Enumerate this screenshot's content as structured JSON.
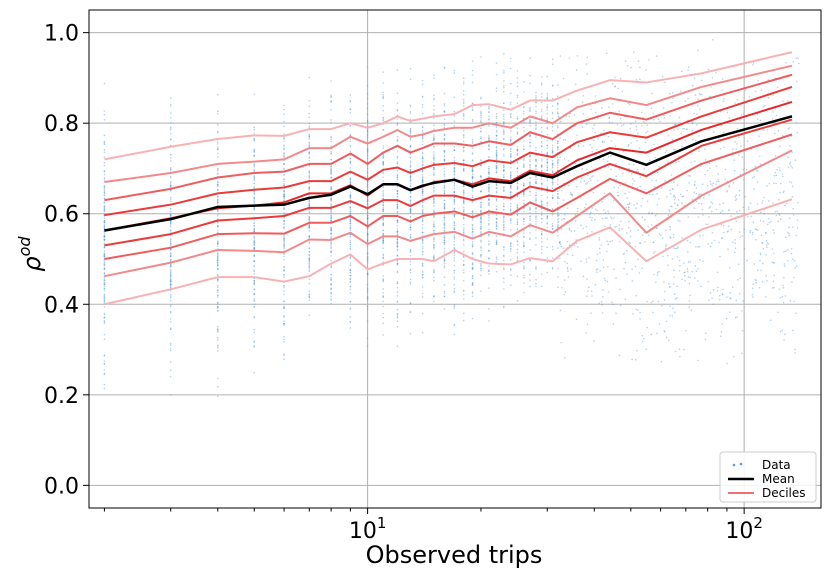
{
  "chart_data": {
    "type": "line",
    "xlabel": "Observed trips",
    "ylabel": "ρ",
    "ylabel_superscript": "od",
    "xscale": "log",
    "xlim": [
      1.82,
      160
    ],
    "ylim": [
      -0.05,
      1.05
    ],
    "grid": true,
    "legend_position": "bottom-right",
    "y_ticks": [
      {
        "value": 0.0,
        "label": "0.0"
      },
      {
        "value": 0.2,
        "label": "0.2"
      },
      {
        "value": 0.4,
        "label": "0.4"
      },
      {
        "value": 0.6,
        "label": "0.6"
      },
      {
        "value": 0.8,
        "label": "0.8"
      },
      {
        "value": 1.0,
        "label": "1.0"
      }
    ],
    "x_ticks": [
      {
        "value": 10,
        "base": "10",
        "exp": "1"
      },
      {
        "value": 100,
        "base": "10",
        "exp": "2"
      }
    ],
    "x": [
      2,
      3,
      4,
      5,
      6,
      7,
      8,
      9,
      10,
      11,
      12,
      13,
      14,
      15,
      17,
      19,
      21,
      24,
      27,
      31,
      36,
      44,
      55,
      77,
      134
    ],
    "series": [
      {
        "name": "Mean",
        "color": "#000000",
        "values": [
          0.563,
          0.588,
          0.615,
          0.618,
          0.62,
          0.635,
          0.642,
          0.66,
          0.643,
          0.665,
          0.665,
          0.652,
          0.662,
          0.668,
          0.675,
          0.66,
          0.672,
          0.668,
          0.69,
          0.68,
          0.705,
          0.735,
          0.708,
          0.76,
          0.815
        ]
      }
    ],
    "deciles": {
      "legend_name": "Deciles",
      "color": "#f07070",
      "lines": [
        {
          "color": "#f7b3b3",
          "values": [
            0.72,
            0.748,
            0.765,
            0.773,
            0.772,
            0.787,
            0.787,
            0.8,
            0.79,
            0.8,
            0.815,
            0.805,
            0.81,
            0.815,
            0.82,
            0.84,
            0.842,
            0.83,
            0.85,
            0.85,
            0.872,
            0.895,
            0.89,
            0.91,
            0.957
          ]
        },
        {
          "color": "#f28a8a",
          "values": [
            0.67,
            0.69,
            0.71,
            0.715,
            0.72,
            0.745,
            0.745,
            0.77,
            0.755,
            0.77,
            0.785,
            0.77,
            0.775,
            0.783,
            0.79,
            0.79,
            0.8,
            0.79,
            0.815,
            0.8,
            0.835,
            0.855,
            0.84,
            0.88,
            0.927
          ]
        },
        {
          "color": "#ee5d5d",
          "values": [
            0.63,
            0.655,
            0.68,
            0.69,
            0.693,
            0.71,
            0.71,
            0.733,
            0.71,
            0.735,
            0.75,
            0.735,
            0.745,
            0.755,
            0.755,
            0.75,
            0.76,
            0.752,
            0.78,
            0.765,
            0.8,
            0.823,
            0.808,
            0.85,
            0.907
          ]
        },
        {
          "color": "#ea3b3b",
          "values": [
            0.597,
            0.62,
            0.645,
            0.653,
            0.658,
            0.672,
            0.672,
            0.693,
            0.675,
            0.697,
            0.702,
            0.69,
            0.7,
            0.708,
            0.712,
            0.705,
            0.718,
            0.712,
            0.735,
            0.725,
            0.758,
            0.78,
            0.768,
            0.815,
            0.88
          ]
        },
        {
          "color": "#e62828",
          "values": [
            0.563,
            0.59,
            0.612,
            0.618,
            0.625,
            0.645,
            0.645,
            0.663,
            0.64,
            0.665,
            0.665,
            0.652,
            0.66,
            0.67,
            0.675,
            0.665,
            0.678,
            0.672,
            0.695,
            0.685,
            0.718,
            0.745,
            0.735,
            0.785,
            0.847
          ]
        },
        {
          "color": "#ea3b3b",
          "values": [
            0.53,
            0.555,
            0.585,
            0.59,
            0.595,
            0.613,
            0.613,
            0.628,
            0.612,
            0.63,
            0.63,
            0.617,
            0.63,
            0.64,
            0.64,
            0.63,
            0.64,
            0.635,
            0.66,
            0.65,
            0.68,
            0.71,
            0.683,
            0.75,
            0.808
          ]
        },
        {
          "color": "#ee5d5d",
          "values": [
            0.5,
            0.525,
            0.555,
            0.557,
            0.556,
            0.58,
            0.58,
            0.595,
            0.572,
            0.595,
            0.595,
            0.583,
            0.595,
            0.6,
            0.605,
            0.592,
            0.605,
            0.598,
            0.625,
            0.605,
            0.635,
            0.677,
            0.645,
            0.71,
            0.775
          ]
        },
        {
          "color": "#f28a8a",
          "values": [
            0.462,
            0.492,
            0.52,
            0.518,
            0.515,
            0.543,
            0.542,
            0.558,
            0.533,
            0.55,
            0.55,
            0.54,
            0.548,
            0.555,
            0.56,
            0.545,
            0.56,
            0.55,
            0.575,
            0.558,
            0.595,
            0.645,
            0.558,
            0.64,
            0.74
          ]
        },
        {
          "color": "#f7b3b3",
          "values": [
            0.4,
            0.433,
            0.46,
            0.46,
            0.45,
            0.462,
            0.49,
            0.51,
            0.477,
            0.49,
            0.5,
            0.5,
            0.5,
            0.495,
            0.52,
            0.5,
            0.49,
            0.488,
            0.502,
            0.495,
            0.54,
            0.57,
            0.495,
            0.565,
            0.632
          ]
        }
      ]
    },
    "scatter": {
      "name": "Data",
      "color": "#5b9bd5",
      "x_columns": [
        2,
        3,
        4,
        5,
        6,
        7,
        8,
        9,
        10,
        11,
        12,
        13,
        14,
        15,
        16,
        17,
        18,
        19,
        20,
        21,
        22,
        23,
        24,
        25,
        26,
        27,
        28,
        29,
        30,
        31,
        32
      ],
      "column_ranges": [
        [
          0.12,
          0.93
        ],
        [
          0.18,
          0.93
        ],
        [
          0.14,
          0.95
        ],
        [
          0.2,
          0.93
        ],
        [
          0.22,
          0.93
        ],
        [
          0.24,
          0.95
        ],
        [
          0.25,
          0.95
        ],
        [
          0.22,
          0.97
        ],
        [
          0.25,
          0.98
        ],
        [
          0.28,
          0.98
        ],
        [
          0.25,
          0.98
        ],
        [
          0.28,
          0.98
        ],
        [
          0.28,
          0.99
        ],
        [
          0.3,
          0.99
        ],
        [
          0.3,
          0.99
        ],
        [
          0.25,
          0.99
        ],
        [
          0.28,
          0.99
        ],
        [
          0.3,
          0.99
        ],
        [
          0.32,
          1.0
        ],
        [
          0.3,
          1.0
        ],
        [
          0.32,
          1.0
        ],
        [
          0.3,
          1.0
        ],
        [
          0.34,
          1.0
        ],
        [
          0.34,
          1.0
        ],
        [
          0.35,
          1.0
        ],
        [
          0.36,
          1.0
        ],
        [
          0.36,
          1.0
        ],
        [
          0.38,
          1.0
        ],
        [
          0.38,
          1.0
        ],
        [
          0.38,
          1.0
        ],
        [
          0.38,
          1.0
        ]
      ],
      "continuous_x_range": [
        32,
        140
      ],
      "continuous_y_range": [
        0.25,
        1.0
      ]
    },
    "legend": [
      {
        "name": "Data"
      },
      {
        "name": "Mean"
      },
      {
        "name": "Deciles"
      }
    ]
  }
}
